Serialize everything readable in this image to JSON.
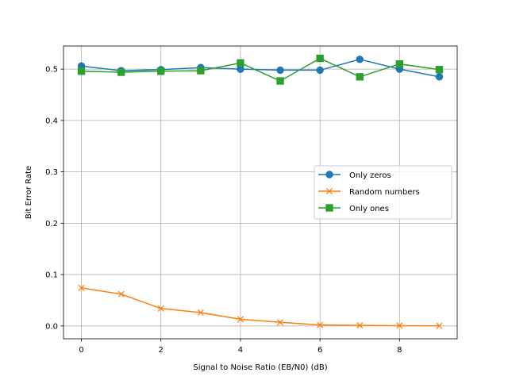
{
  "chart_data": {
    "type": "line",
    "title": "",
    "xlabel": "Signal to Noise Ratio (EB/N0) (dB)",
    "ylabel": "Bit Error Rate",
    "x": [
      0,
      1,
      2,
      3,
      4,
      5,
      6,
      7,
      8,
      9
    ],
    "xlim": [
      -0.45,
      9.45
    ],
    "ylim": [
      -0.025,
      0.545
    ],
    "xticks": [
      0,
      2,
      4,
      6,
      8
    ],
    "xtick_labels": [
      "0",
      "2",
      "4",
      "6",
      "8"
    ],
    "yticks": [
      0.0,
      0.1,
      0.2,
      0.3,
      0.4,
      0.5
    ],
    "ytick_labels": [
      "0.0",
      "0.1",
      "0.2",
      "0.3",
      "0.4",
      "0.5"
    ],
    "grid": true,
    "legend_position": "center-right",
    "series": [
      {
        "name": "Only zeros",
        "color": "#1f77b4",
        "marker": "circle",
        "values": [
          0.506,
          0.497,
          0.499,
          0.503,
          0.5,
          0.498,
          0.498,
          0.519,
          0.5,
          0.485
        ]
      },
      {
        "name": "Random numbers",
        "color": "#ff7f0e",
        "marker": "x",
        "values": [
          0.074,
          0.062,
          0.034,
          0.026,
          0.013,
          0.007,
          0.002,
          0.001,
          0.0005,
          0.0002
        ]
      },
      {
        "name": "Only ones",
        "color": "#2ca02c",
        "marker": "square",
        "values": [
          0.496,
          0.494,
          0.496,
          0.497,
          0.512,
          0.477,
          0.521,
          0.485,
          0.51,
          0.499
        ]
      }
    ]
  }
}
